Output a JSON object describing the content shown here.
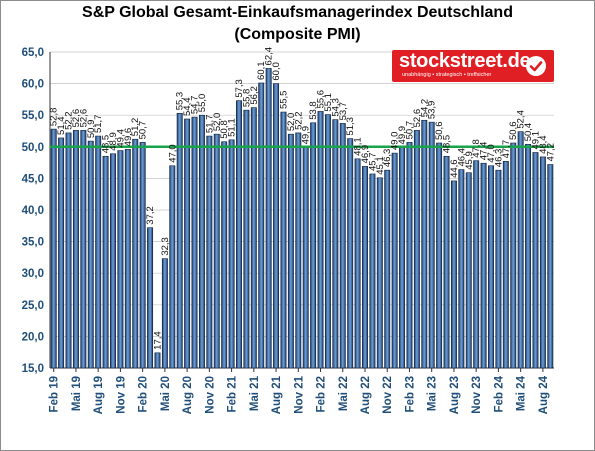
{
  "title_line1": "S&P Global Gesamt-Einkaufsmanagerindex Deutschland",
  "title_line2": "(Composite PMI)",
  "logo": {
    "name": "stockstreet.de",
    "tagline": "unabhängig • strategisch • treffsicher",
    "icon": "checkmark-icon"
  },
  "colors": {
    "bar": "#3a6ea8",
    "bar_edge": "#0d1f3c",
    "reference_line": "#19a34a",
    "axis_label": "#1f4e79",
    "brand": "#e01f25"
  },
  "chart_data": {
    "type": "bar",
    "title": "S&P Global Gesamt-Einkaufsmanagerindex Deutschland (Composite PMI)",
    "xlabel": "",
    "ylabel": "",
    "ylim": [
      15,
      65
    ],
    "y_ticks": [
      "15,0",
      "20,0",
      "25,0",
      "30,0",
      "35,0",
      "40,0",
      "45,0",
      "50,0",
      "55,0",
      "60,0",
      "65,0"
    ],
    "reference_line": 50,
    "grid": true,
    "categories": [
      "Feb 19",
      "Mar 19",
      "Apr 19",
      "Mai 19",
      "Jun 19",
      "Jul 19",
      "Aug 19",
      "Sep 19",
      "Okt 19",
      "Nov 19",
      "Dez 19",
      "Jan 20",
      "Feb 20",
      "Mar 20",
      "Apr 20",
      "Mai 20",
      "Jun 20",
      "Jul 20",
      "Aug 20",
      "Sep 20",
      "Okt 20",
      "Nov 20",
      "Dez 20",
      "Jan 21",
      "Feb 21",
      "Mar 21",
      "Apr 21",
      "Mai 21",
      "Jun 21",
      "Jul 21",
      "Aug 21",
      "Sep 21",
      "Okt 21",
      "Nov 21",
      "Dez 21",
      "Jan 22",
      "Feb 22",
      "Mar 22",
      "Apr 22",
      "Mai 22",
      "Jun 22",
      "Jul 22",
      "Aug 22",
      "Sep 22",
      "Okt 22",
      "Nov 22",
      "Dez 22",
      "Jan 23",
      "Feb 23",
      "Mar 23",
      "Apr 23",
      "Mai 23",
      "Jun 23",
      "Jul 23",
      "Aug 23",
      "Sep 23",
      "Okt 23",
      "Nov 23",
      "Dez 23",
      "Jan 24",
      "Feb 24",
      "Mar 24",
      "Apr 24",
      "Mai 24",
      "Jun 24",
      "Jul 24",
      "Aug 24",
      "Sep 24"
    ],
    "x_tick_labels": [
      "Feb 19",
      "Mai 19",
      "Aug 19",
      "Nov 19",
      "Feb 20",
      "Mai 20",
      "Aug 20",
      "Nov 20",
      "Feb 21",
      "Mai 21",
      "Aug 21",
      "Nov 21",
      "Feb 22",
      "Mai 22",
      "Aug 22",
      "Nov 22",
      "Feb 23",
      "Mai 23",
      "Aug 23",
      "Nov 23",
      "Feb 24",
      "Mai 24",
      "Aug 24"
    ],
    "values": [
      52.8,
      51.4,
      52.2,
      52.6,
      52.6,
      50.9,
      51.7,
      48.5,
      48.9,
      49.4,
      49.6,
      51.2,
      50.7,
      37.2,
      17.4,
      32.3,
      47.0,
      55.3,
      54.4,
      54.7,
      55.0,
      51.7,
      52.0,
      50.8,
      51.1,
      57.3,
      55.8,
      56.2,
      60.1,
      62.4,
      60.0,
      55.5,
      52.0,
      52.2,
      49.9,
      53.8,
      55.6,
      55.1,
      54.3,
      53.7,
      51.3,
      48.1,
      46.9,
      45.7,
      45.1,
      46.3,
      49.0,
      49.9,
      50.7,
      52.6,
      54.2,
      53.9,
      50.6,
      48.5,
      44.6,
      46.4,
      45.9,
      47.8,
      47.4,
      47.0,
      46.3,
      47.7,
      50.6,
      52.4,
      50.4,
      49.1,
      48.4,
      47.2
    ],
    "data_labels": [
      "52,8",
      "51,4",
      "52,2",
      "52,6",
      "52,6",
      "50,9",
      "51,7",
      "48,5",
      "48,9",
      "49,4",
      "49,6",
      "51,2",
      "50,7",
      "37,2",
      "17,4",
      "32,3",
      "47,0",
      "55,3",
      "54,4",
      "54,7",
      "55,0",
      "51,7",
      "52,0",
      "50,8",
      "51,1",
      "57,3",
      "55,8",
      "56,2",
      "60,1",
      "62,4",
      "60,0",
      "55,5",
      "52,0",
      "52,2",
      "49,9",
      "53,8",
      "55,6",
      "55,1",
      "54,3",
      "53,7",
      "51,3",
      "48,1",
      "46,9",
      "45,7",
      "45,1",
      "46,3",
      "49,0",
      "49,9",
      "50,7",
      "52,6",
      "54,2",
      "53,9",
      "50,6",
      "48,5",
      "44,6",
      "46,4",
      "45,9",
      "47,8",
      "47,4",
      "47,0",
      "46,3",
      "47,7",
      "50,6",
      "52,4",
      "50,4",
      "49,1",
      "48,4",
      "47,2"
    ]
  }
}
